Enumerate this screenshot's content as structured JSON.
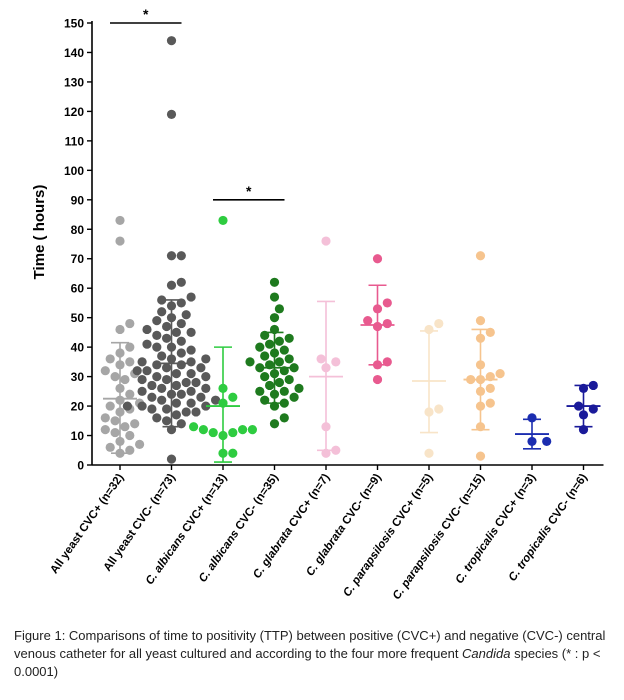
{
  "chart_data": {
    "type": "scatter",
    "title": "",
    "ylabel": "Time ( hours)",
    "xlabel": "",
    "ylim": [
      0,
      150
    ],
    "yticks": [
      0,
      10,
      20,
      30,
      40,
      50,
      60,
      70,
      80,
      90,
      100,
      110,
      120,
      130,
      140,
      150
    ],
    "grid": false,
    "legend": "none",
    "series": [
      {
        "name": "All yeast CVC+ (n=32)",
        "label_pre": "All yeast CVC+ (n=32)",
        "label_it": "",
        "label_post": "",
        "color": "#a6a6a6",
        "mean": 22.5,
        "sd_low": 4,
        "sd_high": 41.5,
        "values": [
          83,
          76,
          48,
          46,
          40,
          38,
          36,
          35,
          34,
          32,
          31,
          30,
          29,
          26,
          24,
          22,
          21,
          20,
          19,
          18,
          16,
          15,
          14,
          13,
          12,
          11,
          10,
          8,
          7,
          6,
          5,
          4
        ]
      },
      {
        "name": "All yeast CVC- (n=73)",
        "label_pre": "All yeast CVC- (n=73)",
        "label_it": "",
        "label_post": "",
        "color": "#595959",
        "mean": 34.5,
        "sd_low": 13,
        "sd_high": 56,
        "values": [
          144,
          119,
          71,
          71,
          62,
          61,
          57,
          56,
          55,
          54,
          52,
          51,
          50,
          49,
          48,
          47,
          46,
          45,
          45,
          44,
          43,
          42,
          41,
          40,
          40,
          39,
          38,
          37,
          36,
          36,
          35,
          35,
          34,
          34,
          33,
          33,
          32,
          32,
          31,
          31,
          30,
          30,
          29,
          29,
          28,
          28,
          27,
          27,
          26,
          26,
          25,
          25,
          24,
          24,
          23,
          23,
          22,
          22,
          21,
          21,
          20,
          20,
          20,
          19,
          19,
          18,
          18,
          17,
          16,
          15,
          14,
          12,
          2
        ]
      },
      {
        "name": "C. albicans CVC+ (n=13)",
        "label_pre": "",
        "label_it": "C. albicans",
        "label_post": " CVC+ (n=13)",
        "color": "#2ecc40",
        "mean": 20,
        "sd_low": 1,
        "sd_high": 40,
        "values": [
          83,
          26,
          23,
          21,
          13,
          12,
          12,
          12,
          11,
          11,
          10,
          4,
          4
        ]
      },
      {
        "name": "C. albicans CVC- (n=35)",
        "label_pre": "",
        "label_it": "C. albicans",
        "label_post": " CVC- (n=35)",
        "color": "#1e7a1e",
        "mean": 33,
        "sd_low": 21,
        "sd_high": 45,
        "values": [
          62,
          57,
          53,
          50,
          46,
          44,
          43,
          42,
          41,
          40,
          39,
          38,
          37,
          36,
          35,
          35,
          34,
          33,
          33,
          32,
          31,
          30,
          29,
          28,
          27,
          26,
          25,
          25,
          24,
          23,
          22,
          21,
          20,
          16,
          14
        ]
      },
      {
        "name": "C. glabrata CVC+ (n=7)",
        "label_pre": "",
        "label_it": "C. glabrata",
        "label_post": " CVC+ (n=7)",
        "color": "#f4c0d8",
        "mean": 30,
        "sd_low": 5,
        "sd_high": 55.5,
        "values": [
          76,
          36,
          35,
          33,
          13,
          5,
          4
        ]
      },
      {
        "name": "C. glabrata CVC- (n=9)",
        "label_pre": "",
        "label_it": "C. glabrata",
        "label_post": " CVC- (n=9)",
        "color": "#e85a8f",
        "mean": 47.5,
        "sd_low": 34,
        "sd_high": 61,
        "values": [
          70,
          55,
          53,
          49,
          48,
          47,
          35,
          34,
          29
        ]
      },
      {
        "name": "C. parapsilosis CVC+ (n=5)",
        "label_pre": "",
        "label_it": "C. parapsilosis",
        "label_post": " CVC+ (n=5)",
        "color": "#f8e4c8",
        "mean": 28.5,
        "sd_low": 11,
        "sd_high": 45.5,
        "values": [
          48,
          46,
          19,
          18,
          4
        ]
      },
      {
        "name": "C. parapsilosis CVC- (n=15)",
        "label_pre": "",
        "label_it": "C. parapsilosis",
        "label_post": " CVC- (n=15)",
        "color": "#f6c48e",
        "mean": 29,
        "sd_low": 12,
        "sd_high": 46,
        "values": [
          71,
          49,
          45,
          43,
          34,
          31,
          30,
          29,
          29,
          26,
          25,
          21,
          20,
          13,
          3
        ]
      },
      {
        "name": "C. tropicalis CVC+ (n=3)",
        "label_pre": "",
        "label_it": "C. tropicalis",
        "label_post": " CVC+ (n=3)",
        "color": "#1b2db0",
        "mean": 10.5,
        "sd_low": 5.5,
        "sd_high": 15.5,
        "values": [
          16,
          8,
          8
        ]
      },
      {
        "name": "C. tropicalis CVC- (n=6)",
        "label_pre": "",
        "label_it": "C. tropicalis",
        "label_post": " CVC- (n=6)",
        "color": "#1a1a9a",
        "mean": 20,
        "sd_low": 13,
        "sd_high": 27,
        "values": [
          27,
          26,
          20,
          19,
          17,
          12
        ]
      }
    ],
    "annotations": [
      {
        "text": "*",
        "from": 0,
        "to": 1,
        "at": 150
      },
      {
        "text": "*",
        "from": 2,
        "to": 3,
        "at": 90
      }
    ]
  },
  "caption": {
    "pre": "Figure 1: Comparisons of time to positivity (TTP) between positive (CVC+) and negative (CVC-) central venous catheter for all yeast cultured and according to the four more frequent ",
    "italic": "Candida",
    "post": " species (* : p < 0.0001)"
  }
}
